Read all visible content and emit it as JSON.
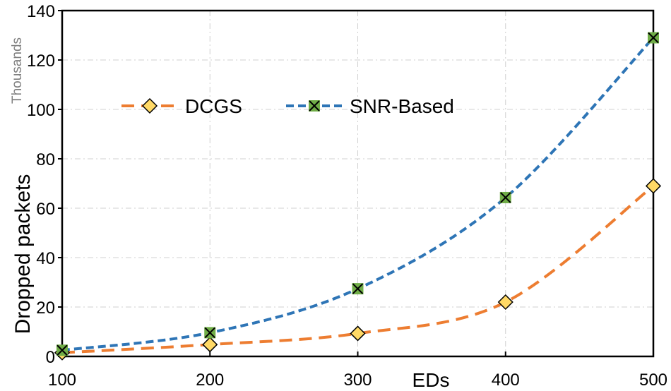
{
  "chart_data": {
    "type": "line",
    "xlabel": "EDs",
    "ylabel": "Dropped packets",
    "yunit_label": "Thousands",
    "x": [
      100,
      200,
      300,
      400,
      500
    ],
    "xticks": [
      "100",
      "200",
      "300",
      "400",
      "500"
    ],
    "yticks": [
      "0",
      "20",
      "40",
      "60",
      "80",
      "100",
      "120",
      "140"
    ],
    "xlim": [
      100,
      500
    ],
    "ylim": [
      0,
      140
    ],
    "grid": true,
    "legend_position": "top-left",
    "series": [
      {
        "name": "DCGS",
        "values": [
          1.5,
          4.8,
          9.3,
          22,
          69
        ],
        "color": "#ED7D31",
        "marker": "diamond",
        "marker_color": "#FFD966"
      },
      {
        "name": "SNR-Based",
        "values": [
          2.5,
          9.6,
          27.4,
          64.3,
          129
        ],
        "color": "#2E75B6",
        "marker": "x-square",
        "marker_color": "#70AD47"
      }
    ]
  }
}
